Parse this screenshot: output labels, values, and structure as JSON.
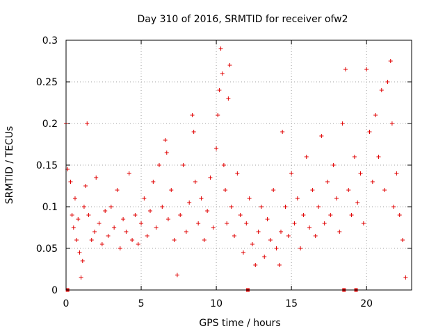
{
  "chart_data": {
    "type": "scatter",
    "title": "Day 310 of 2016, SRMTID for receiver ofw2",
    "xlabel": "GPS time / hours",
    "ylabel": "SRMTID / TECUs",
    "xlim": [
      0,
      23
    ],
    "ylim": [
      0,
      0.3
    ],
    "x_ticks": [
      0,
      5,
      10,
      15,
      20
    ],
    "y_ticks": [
      0,
      0.05,
      0.1,
      0.15,
      0.2,
      0.25,
      0.3
    ],
    "x_tick_labels": [
      "0",
      "5",
      "10",
      "15",
      "20"
    ],
    "y_tick_labels": [
      "0",
      "0.05",
      "0.1",
      "0.15",
      "0.2",
      "0.25",
      "0.3"
    ],
    "marker": "+",
    "color": "#e00000",
    "grid": true,
    "series": [
      {
        "name": "SRMTID",
        "points": [
          [
            0.0,
            0.2
          ],
          [
            0.1,
            0.145
          ],
          [
            0.3,
            0.13
          ],
          [
            0.4,
            0.09
          ],
          [
            0.5,
            0.075
          ],
          [
            0.6,
            0.11
          ],
          [
            0.7,
            0.06
          ],
          [
            0.8,
            0.085
          ],
          [
            0.9,
            0.045
          ],
          [
            1.0,
            0.015
          ],
          [
            1.1,
            0.035
          ],
          [
            1.2,
            0.1
          ],
          [
            1.3,
            0.125
          ],
          [
            1.4,
            0.2
          ],
          [
            1.5,
            0.09
          ],
          [
            1.7,
            0.06
          ],
          [
            1.9,
            0.07
          ],
          [
            2.0,
            0.135
          ],
          [
            2.2,
            0.08
          ],
          [
            2.4,
            0.055
          ],
          [
            2.6,
            0.095
          ],
          [
            2.8,
            0.065
          ],
          [
            3.0,
            0.1
          ],
          [
            3.2,
            0.075
          ],
          [
            3.4,
            0.12
          ],
          [
            3.6,
            0.05
          ],
          [
            3.8,
            0.085
          ],
          [
            4.0,
            0.07
          ],
          [
            4.2,
            0.14
          ],
          [
            4.4,
            0.06
          ],
          [
            4.6,
            0.09
          ],
          [
            4.8,
            0.055
          ],
          [
            5.0,
            0.08
          ],
          [
            5.2,
            0.11
          ],
          [
            5.4,
            0.065
          ],
          [
            5.6,
            0.095
          ],
          [
            5.8,
            0.13
          ],
          [
            6.0,
            0.075
          ],
          [
            6.2,
            0.15
          ],
          [
            6.4,
            0.1
          ],
          [
            6.6,
            0.18
          ],
          [
            6.7,
            0.165
          ],
          [
            6.8,
            0.085
          ],
          [
            7.0,
            0.12
          ],
          [
            7.2,
            0.06
          ],
          [
            7.4,
            0.018
          ],
          [
            7.6,
            0.09
          ],
          [
            7.8,
            0.15
          ],
          [
            8.0,
            0.07
          ],
          [
            8.2,
            0.105
          ],
          [
            8.4,
            0.21
          ],
          [
            8.5,
            0.19
          ],
          [
            8.6,
            0.13
          ],
          [
            8.8,
            0.08
          ],
          [
            9.0,
            0.11
          ],
          [
            9.2,
            0.06
          ],
          [
            9.4,
            0.095
          ],
          [
            9.6,
            0.135
          ],
          [
            9.8,
            0.075
          ],
          [
            10.0,
            0.17
          ],
          [
            10.1,
            0.21
          ],
          [
            10.2,
            0.24
          ],
          [
            10.3,
            0.29
          ],
          [
            10.4,
            0.26
          ],
          [
            10.5,
            0.15
          ],
          [
            10.6,
            0.12
          ],
          [
            10.7,
            0.08
          ],
          [
            10.8,
            0.23
          ],
          [
            10.9,
            0.27
          ],
          [
            11.0,
            0.1
          ],
          [
            11.2,
            0.065
          ],
          [
            11.4,
            0.14
          ],
          [
            11.6,
            0.09
          ],
          [
            11.8,
            0.045
          ],
          [
            12.0,
            0.08
          ],
          [
            12.2,
            0.11
          ],
          [
            12.4,
            0.055
          ],
          [
            12.6,
            0.03
          ],
          [
            12.8,
            0.07
          ],
          [
            13.0,
            0.1
          ],
          [
            13.2,
            0.04
          ],
          [
            13.4,
            0.085
          ],
          [
            13.6,
            0.06
          ],
          [
            13.8,
            0.12
          ],
          [
            14.0,
            0.05
          ],
          [
            14.2,
            0.03
          ],
          [
            14.3,
            0.07
          ],
          [
            14.4,
            0.19
          ],
          [
            14.6,
            0.1
          ],
          [
            14.8,
            0.065
          ],
          [
            15.0,
            0.14
          ],
          [
            15.2,
            0.08
          ],
          [
            15.4,
            0.11
          ],
          [
            15.6,
            0.05
          ],
          [
            15.8,
            0.09
          ],
          [
            16.0,
            0.16
          ],
          [
            16.2,
            0.075
          ],
          [
            16.4,
            0.12
          ],
          [
            16.6,
            0.065
          ],
          [
            16.8,
            0.1
          ],
          [
            17.0,
            0.185
          ],
          [
            17.2,
            0.08
          ],
          [
            17.4,
            0.13
          ],
          [
            17.6,
            0.09
          ],
          [
            17.8,
            0.15
          ],
          [
            18.0,
            0.11
          ],
          [
            18.2,
            0.07
          ],
          [
            18.4,
            0.2
          ],
          [
            18.6,
            0.265
          ],
          [
            18.8,
            0.12
          ],
          [
            19.0,
            0.09
          ],
          [
            19.2,
            0.16
          ],
          [
            19.4,
            0.105
          ],
          [
            19.6,
            0.14
          ],
          [
            19.8,
            0.08
          ],
          [
            20.0,
            0.265
          ],
          [
            20.2,
            0.19
          ],
          [
            20.4,
            0.13
          ],
          [
            20.6,
            0.21
          ],
          [
            20.8,
            0.16
          ],
          [
            21.0,
            0.24
          ],
          [
            21.2,
            0.12
          ],
          [
            21.4,
            0.25
          ],
          [
            21.6,
            0.275
          ],
          [
            21.7,
            0.2
          ],
          [
            21.8,
            0.1
          ],
          [
            22.0,
            0.14
          ],
          [
            22.2,
            0.09
          ],
          [
            22.4,
            0.06
          ],
          [
            22.6,
            0.015
          ]
        ]
      }
    ],
    "x_axis_markers": [
      0.1,
      12.1,
      18.5,
      19.3
    ]
  }
}
